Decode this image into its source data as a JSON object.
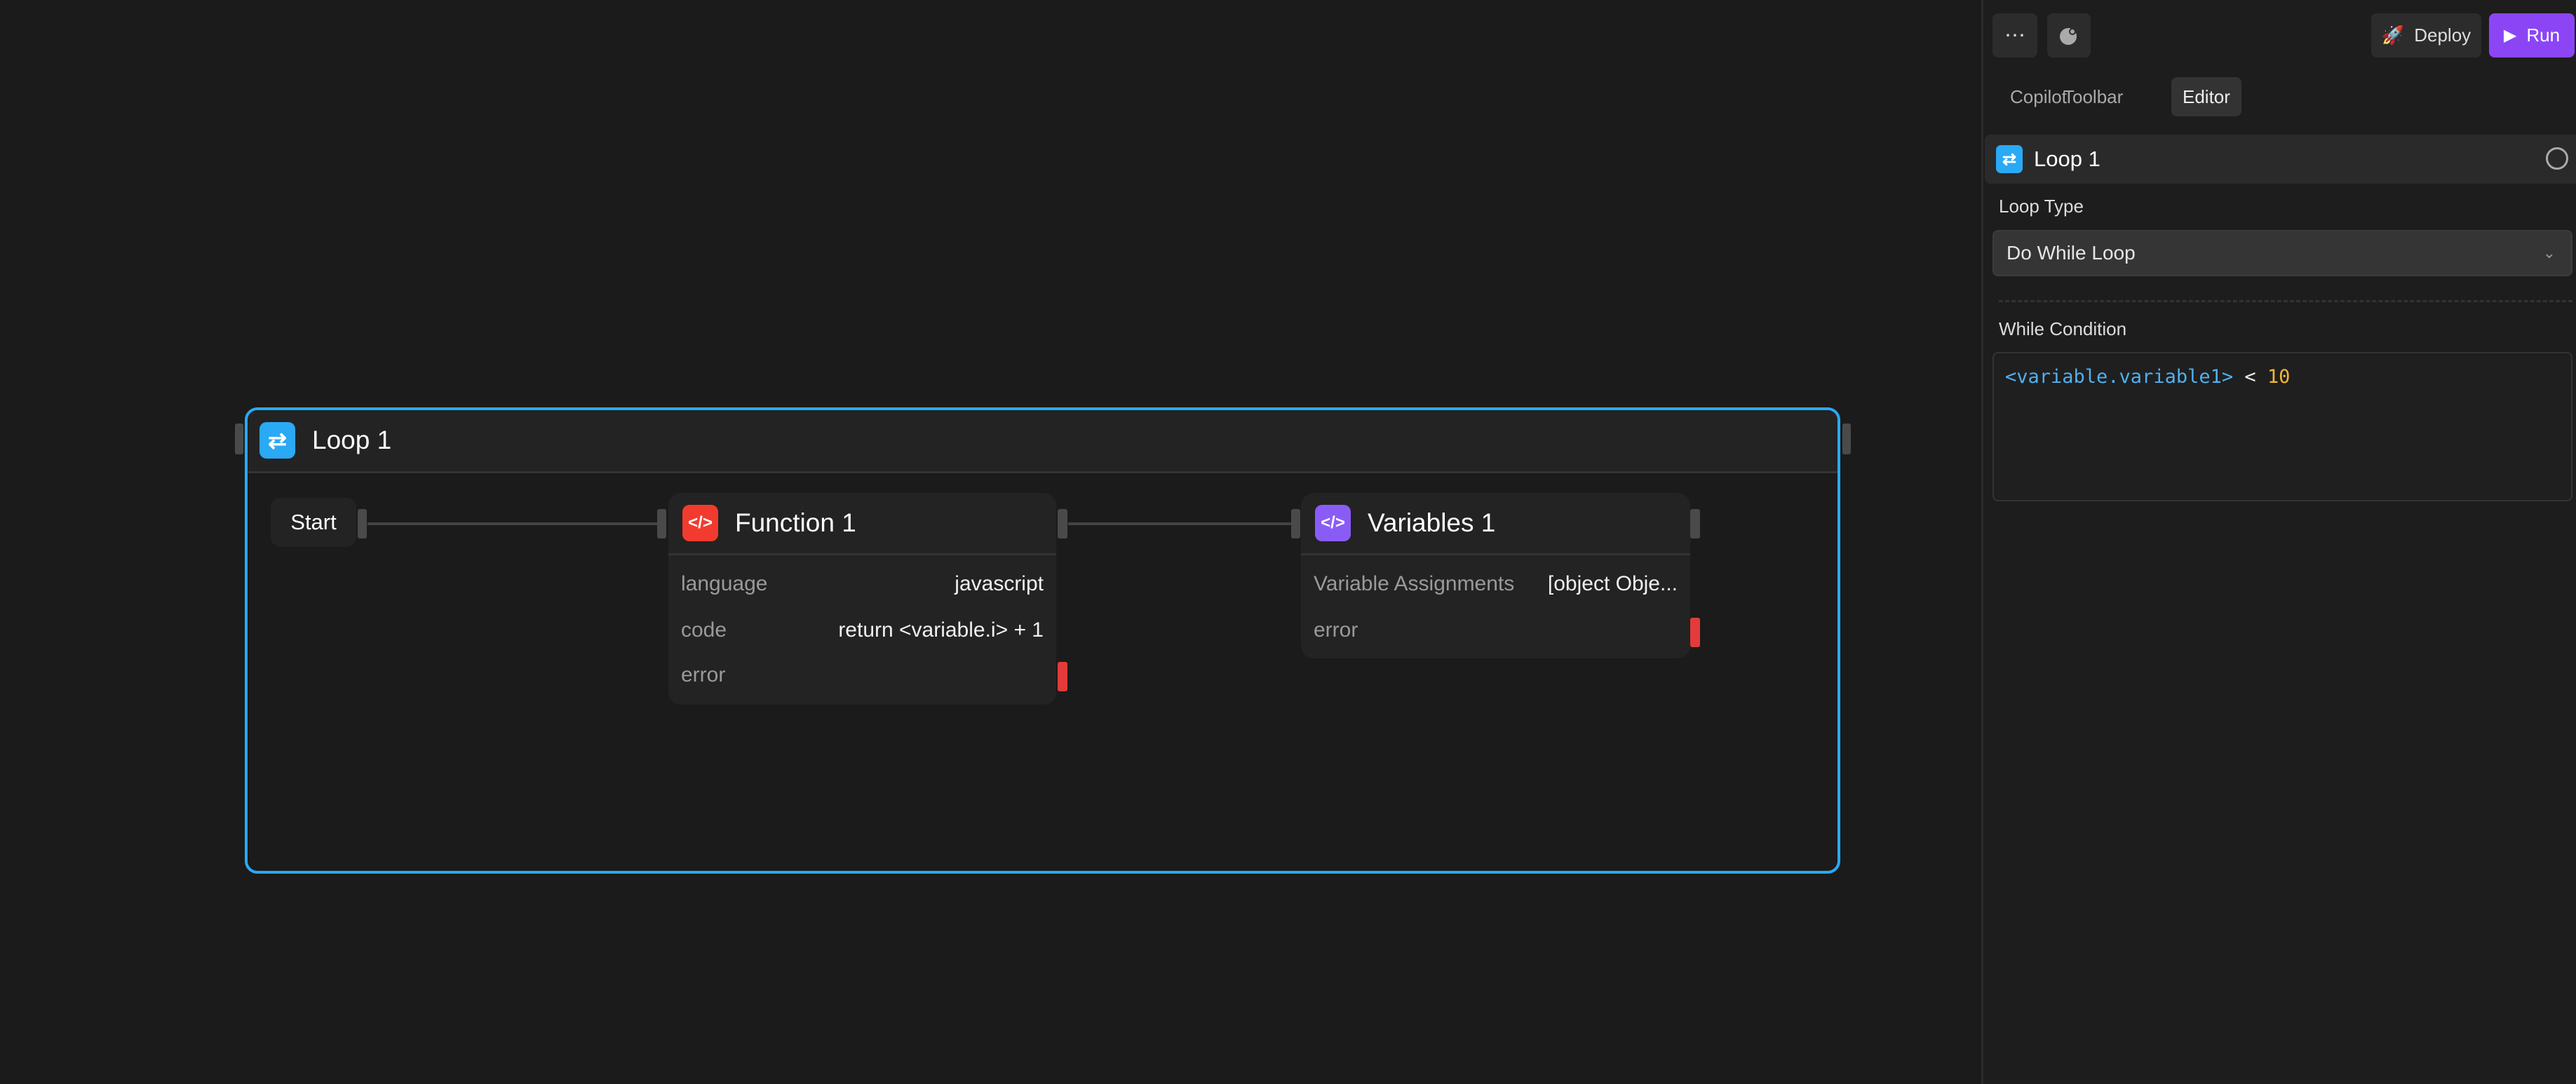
{
  "canvas": {
    "loop": {
      "title": "Loop 1",
      "icon": "repeat-icon",
      "color": "#2aa9f5"
    },
    "start": {
      "label": "Start"
    },
    "function_node": {
      "title": "Function 1",
      "icon": "code-icon",
      "color": "#f23b2e",
      "rows": [
        {
          "key": "language",
          "value": "javascript"
        },
        {
          "key": "code",
          "value": "return <variable.i> + 1"
        },
        {
          "key": "error",
          "value": ""
        }
      ]
    },
    "variables_node": {
      "title": "Variables 1",
      "icon": "code-icon",
      "color": "#8a5cf6",
      "rows": [
        {
          "key": "Variable Assignments",
          "value": "[object Obje..."
        },
        {
          "key": "error",
          "value": ""
        }
      ]
    }
  },
  "panel": {
    "more_icon": "more-horizontal-icon",
    "copilot_icon": "chat-bubble-icon",
    "deploy_label": "Deploy",
    "run_label": "Run",
    "run_color": "#8b45f5",
    "tabs": [
      {
        "label": "Copilot"
      },
      {
        "label": "Toolbar"
      },
      {
        "label": "Editor",
        "active": true
      }
    ],
    "block": {
      "title": "Loop 1",
      "icon": "repeat-icon"
    },
    "loop_type_label": "Loop Type",
    "loop_type_value": "Do While Loop",
    "while_label": "While Condition",
    "condition": {
      "variable": "<variable.variable1>",
      "operator": " < ",
      "number": "10"
    }
  }
}
